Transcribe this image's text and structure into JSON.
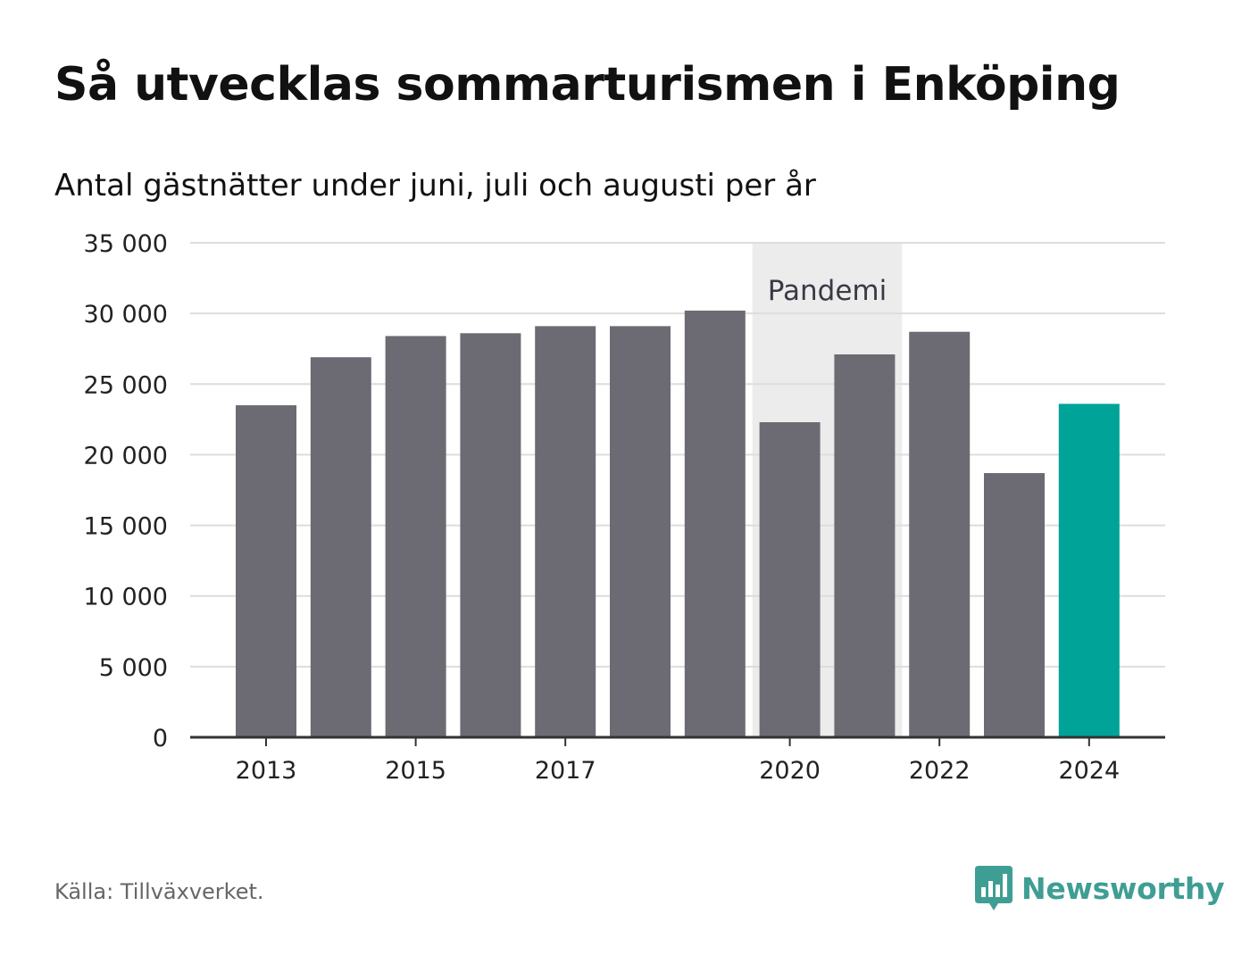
{
  "header": {
    "title": "Så utvecklas sommarturismen i Enköping",
    "subtitle": "Antal gästnätter under juni, juli och augusti per år"
  },
  "chart_data": {
    "type": "bar",
    "categories": [
      "2013",
      "2014",
      "2015",
      "2016",
      "2017",
      "2018",
      "2019",
      "2020",
      "2021",
      "2022",
      "2023",
      "2024"
    ],
    "values": [
      23500,
      26900,
      28400,
      28600,
      29100,
      29100,
      30200,
      22300,
      27100,
      28700,
      18700,
      23600
    ],
    "highlight_category": "2024",
    "x_tick_labels": [
      "2013",
      "2015",
      "2017",
      "2020",
      "2022",
      "2024"
    ],
    "y_ticks": [
      0,
      5000,
      10000,
      15000,
      20000,
      25000,
      30000,
      35000
    ],
    "y_tick_labels": [
      "0",
      "5 000",
      "10 000",
      "15 000",
      "20 000",
      "25 000",
      "30 000",
      "35 000"
    ],
    "ylim": [
      0,
      35000
    ],
    "grid": true,
    "annotation": {
      "label": "Pandemi",
      "from_category": "2020",
      "to_category": "2021"
    },
    "colors": {
      "bar": "#6c6b73",
      "highlight": "#00a398",
      "band": "#ececec",
      "grid": "#dddddd",
      "axis": "#333333"
    }
  },
  "footer": {
    "source": "Källa: Tillväxverket.",
    "brand": "Newsworthy",
    "brand_icon": "bar-chart-bubble-icon",
    "brand_color": "#3f9e94"
  }
}
